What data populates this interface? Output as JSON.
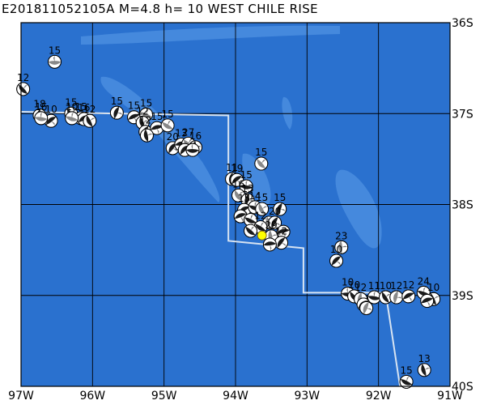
{
  "header": {
    "title": "E201811052105A M=4.8 h= 10 WEST CHILE RISE"
  },
  "event": {
    "id": "E201811052105A",
    "magnitude": "M=4.8",
    "depth": "h= 10",
    "region": "WEST CHILE RISE",
    "epicenter": {
      "lon": -93.63,
      "lat": -38.34
    },
    "marker_color": "#ffff00"
  },
  "map": {
    "lon_range": [
      -97,
      -91
    ],
    "lat_range": [
      -40,
      -36
    ],
    "x_ticks": [
      {
        "lon": -97,
        "label": "97W"
      },
      {
        "lon": -96,
        "label": "96W"
      },
      {
        "lon": -95,
        "label": "95W"
      },
      {
        "lon": -94,
        "label": "94W"
      },
      {
        "lon": -93,
        "label": "93W"
      },
      {
        "lon": -92,
        "label": "92W"
      },
      {
        "lon": -91,
        "label": "91W"
      }
    ],
    "y_ticks": [
      {
        "lat": -36,
        "label": "36S"
      },
      {
        "lat": -37,
        "label": "37S"
      },
      {
        "lat": -38,
        "label": "38S"
      },
      {
        "lat": -39,
        "label": "39S"
      },
      {
        "lat": -40,
        "label": "40S"
      }
    ],
    "colors": {
      "ocean": "#2a71cf",
      "shallow": "#4f92e2",
      "plate_boundary": "#d8e4f2",
      "grid": "#000000"
    },
    "plate_boundary": [
      [
        -97,
        -36.98
      ],
      [
        -95.6,
        -37.0
      ],
      [
        -94.1,
        -37.02
      ],
      [
        -94.1,
        -38.4
      ],
      [
        -93.05,
        -38.48
      ],
      [
        -93.05,
        -38.97
      ],
      [
        -91.9,
        -38.97
      ],
      [
        -91.7,
        -40.0
      ]
    ]
  },
  "mechanisms": [
    {
      "lon": -96.53,
      "lat": -36.43,
      "label": "15"
    },
    {
      "lon": -96.97,
      "lat": -36.73,
      "label": "12"
    },
    {
      "lon": -96.74,
      "lat": -37.02,
      "label": "18"
    },
    {
      "lon": -96.58,
      "lat": -37.08,
      "label": "10"
    },
    {
      "lon": -96.72,
      "lat": -37.05,
      "label": "16"
    },
    {
      "lon": -96.3,
      "lat": -37.0,
      "label": "15"
    },
    {
      "lon": -96.16,
      "lat": -37.05,
      "label": "15"
    },
    {
      "lon": -96.12,
      "lat": -37.06,
      "label": "16"
    },
    {
      "lon": -96.29,
      "lat": -37.05,
      "label": "10"
    },
    {
      "lon": -96.04,
      "lat": -37.08,
      "label": "12"
    },
    {
      "lon": -95.66,
      "lat": -36.99,
      "label": "15"
    },
    {
      "lon": -95.42,
      "lat": -37.04,
      "label": "15"
    },
    {
      "lon": -95.25,
      "lat": -37.01,
      "label": "15"
    },
    {
      "lon": -95.3,
      "lat": -37.1,
      "label": "12"
    },
    {
      "lon": -95.26,
      "lat": -37.2,
      "label": "12"
    },
    {
      "lon": -95.1,
      "lat": -37.16,
      "label": "15"
    },
    {
      "lon": -94.95,
      "lat": -37.13,
      "label": "15"
    },
    {
      "lon": -95.24,
      "lat": -37.24,
      "label": ""
    },
    {
      "lon": -94.88,
      "lat": -37.38,
      "label": "20"
    },
    {
      "lon": -94.76,
      "lat": -37.34,
      "label": "13"
    },
    {
      "lon": -94.66,
      "lat": -37.33,
      "label": "27"
    },
    {
      "lon": -94.56,
      "lat": -37.37,
      "label": "16"
    },
    {
      "lon": -94.71,
      "lat": -37.4,
      "label": ""
    },
    {
      "lon": -94.6,
      "lat": -37.4,
      "label": ""
    },
    {
      "lon": -93.64,
      "lat": -37.55,
      "label": "15"
    },
    {
      "lon": -94.05,
      "lat": -37.72,
      "label": "11"
    },
    {
      "lon": -93.98,
      "lat": -37.73,
      "label": "19"
    },
    {
      "lon": -93.85,
      "lat": -37.8,
      "label": "15"
    },
    {
      "lon": -93.96,
      "lat": -37.9,
      "label": "16"
    },
    {
      "lon": -93.83,
      "lat": -37.95,
      "label": "13"
    },
    {
      "lon": -93.88,
      "lat": -38.06,
      "label": "15"
    },
    {
      "lon": -93.73,
      "lat": -38.03,
      "label": "14"
    },
    {
      "lon": -93.63,
      "lat": -38.05,
      "label": "15"
    },
    {
      "lon": -93.38,
      "lat": -38.05,
      "label": "15"
    },
    {
      "lon": -93.93,
      "lat": -38.13,
      "label": ""
    },
    {
      "lon": -93.79,
      "lat": -38.17,
      "label": ""
    },
    {
      "lon": -93.53,
      "lat": -38.2,
      "label": ""
    },
    {
      "lon": -93.45,
      "lat": -38.2,
      "label": "20"
    },
    {
      "lon": -93.33,
      "lat": -38.3,
      "label": ""
    },
    {
      "lon": -93.65,
      "lat": -38.25,
      "label": "12"
    },
    {
      "lon": -93.5,
      "lat": -38.35,
      "label": "29"
    },
    {
      "lon": -93.36,
      "lat": -38.42,
      "label": "12"
    },
    {
      "lon": -93.52,
      "lat": -38.44,
      "label": ""
    },
    {
      "lon": -93.79,
      "lat": -38.29,
      "label": ""
    },
    {
      "lon": -92.52,
      "lat": -38.47,
      "label": "23"
    },
    {
      "lon": -92.59,
      "lat": -38.62,
      "label": "10"
    },
    {
      "lon": -92.43,
      "lat": -38.98,
      "label": "10"
    },
    {
      "lon": -92.34,
      "lat": -39.01,
      "label": "10"
    },
    {
      "lon": -92.25,
      "lat": -39.04,
      "label": "12"
    },
    {
      "lon": -92.21,
      "lat": -39.1,
      "label": ""
    },
    {
      "lon": -92.06,
      "lat": -39.02,
      "label": "11"
    },
    {
      "lon": -91.9,
      "lat": -39.02,
      "label": "10"
    },
    {
      "lon": -91.75,
      "lat": -39.02,
      "label": "12"
    },
    {
      "lon": -91.58,
      "lat": -39.01,
      "label": "12"
    },
    {
      "lon": -91.37,
      "lat": -38.97,
      "label": "24"
    },
    {
      "lon": -91.23,
      "lat": -39.04,
      "label": "10"
    },
    {
      "lon": -92.17,
      "lat": -39.14,
      "label": ""
    },
    {
      "lon": -91.32,
      "lat": -39.06,
      "label": ""
    },
    {
      "lon": -91.61,
      "lat": -39.95,
      "label": "15"
    },
    {
      "lon": -91.36,
      "lat": -39.82,
      "label": "13"
    }
  ]
}
